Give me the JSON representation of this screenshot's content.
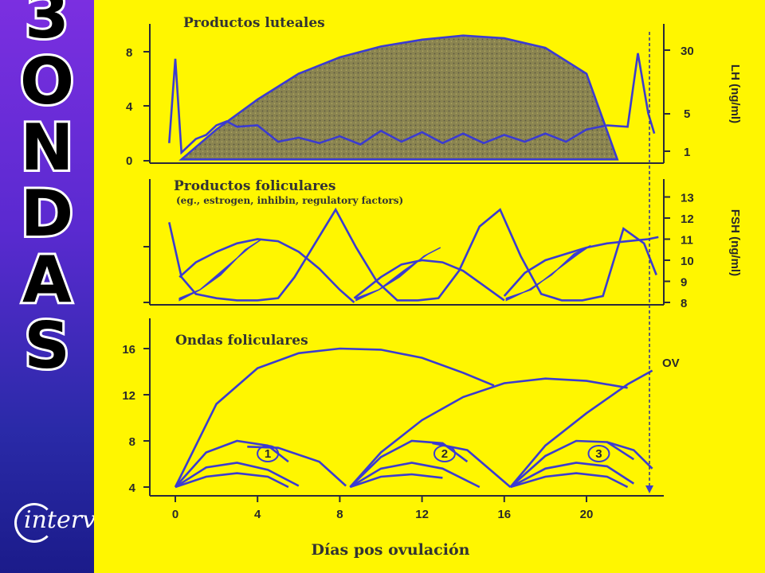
{
  "sidebar": {
    "title_letters": [
      "3",
      "O",
      "N",
      "D",
      "A",
      "S"
    ],
    "logo_text": "interve"
  },
  "colors": {
    "panel": "#fff600",
    "curve": "#3b3bd0",
    "luteal_fill": "#8a8450",
    "sidebar_top": "#7b2fe0",
    "sidebar_bottom": "#1b1b8a"
  },
  "chart_data": [
    {
      "type": "line",
      "title": "Productos luteales",
      "y_left_ticks": [
        "0",
        "4",
        "8"
      ],
      "y_right_label": "LH (ng/ml)",
      "y_right_ticks": [
        "1",
        "5",
        "30"
      ],
      "luteal_area": {
        "x": [
          0.3,
          2,
          4,
          6,
          8,
          10,
          12,
          14,
          16,
          18,
          20,
          21.5
        ],
        "y": [
          0.1,
          2.3,
          4.5,
          6.4,
          7.6,
          8.4,
          8.9,
          9.2,
          9.0,
          8.3,
          6.4,
          0.1
        ]
      },
      "series": [
        {
          "x": [
            -0.3,
            0,
            0.3,
            1,
            1.5,
            2,
            2.5,
            3,
            4,
            5,
            6,
            7,
            8,
            9,
            10,
            11,
            12,
            13,
            14,
            15,
            16,
            17,
            18,
            19,
            20,
            21,
            22,
            22.5,
            23,
            23.3
          ],
          "y": [
            1.3,
            7.5,
            0.6,
            1.6,
            1.9,
            2.6,
            2.9,
            2.5,
            2.6,
            1.4,
            1.7,
            1.3,
            1.8,
            1.2,
            2.2,
            1.4,
            2.1,
            1.3,
            2.0,
            1.3,
            1.9,
            1.4,
            2.0,
            1.4,
            2.3,
            2.6,
            2.5,
            7.9,
            3.5,
            2.0
          ]
        }
      ]
    },
    {
      "type": "line",
      "title": "Productos foliculares",
      "subtitle": "(eg., estrogen, inhibin, regulatory factors)",
      "y_right_label": "FSH (ng/ml)",
      "y_right_ticks": [
        "8",
        "9",
        "10",
        "11",
        "12",
        "13"
      ],
      "series": [
        {
          "x": [
            -0.3,
            0.3,
            1,
            2,
            3,
            4,
            5,
            5.8,
            6.8,
            7.8,
            8.8,
            9.8,
            10.8,
            11.8,
            12.8,
            13.8,
            14.8,
            15.8,
            16.8,
            17.8,
            18.8,
            19.8,
            20.8,
            21.8,
            22.8,
            23.4
          ],
          "y": [
            11.8,
            9.2,
            8.4,
            8.2,
            8.1,
            8.1,
            8.2,
            9.2,
            10.8,
            12.4,
            10.6,
            9.0,
            8.1,
            8.1,
            8.2,
            9.5,
            11.6,
            12.4,
            10.2,
            8.4,
            8.1,
            8.1,
            8.3,
            11.5,
            10.8,
            9.3
          ]
        },
        {
          "x": [
            0.2,
            1,
            2,
            3,
            4,
            5,
            6,
            7,
            8,
            8.7
          ],
          "y": [
            9.2,
            9.9,
            10.4,
            10.8,
            11.0,
            10.9,
            10.4,
            9.6,
            8.6,
            8.0
          ]
        },
        {
          "x": [
            8.7,
            10,
            11,
            12,
            13,
            14,
            15,
            16
          ],
          "y": [
            8.2,
            9.2,
            9.8,
            10.0,
            9.9,
            9.5,
            8.8,
            8.1
          ]
        },
        {
          "x": [
            16,
            17,
            18,
            19,
            20,
            21,
            22,
            23,
            23.5
          ],
          "y": [
            8.3,
            9.4,
            10.0,
            10.3,
            10.6,
            10.8,
            10.9,
            11.0,
            11.1
          ]
        }
      ],
      "follicle_marks": [
        {
          "x": [
            0.2,
            1.2,
            2.4,
            3.6,
            4.2,
            3.4,
            2.2,
            1.2,
            0.2
          ],
          "y": [
            8.2,
            8.6,
            9.6,
            10.6,
            11.0,
            10.5,
            9.3,
            8.6,
            8.1
          ]
        },
        {
          "x": [
            8.8,
            9.9,
            11.1,
            12.3,
            12.9,
            12.1,
            10.9,
            9.9,
            8.8
          ],
          "y": [
            8.2,
            8.6,
            9.5,
            10.3,
            10.6,
            10.2,
            9.2,
            8.6,
            8.1
          ]
        },
        {
          "x": [
            16.1,
            17.3,
            18.5,
            19.6,
            20.2,
            19.4,
            18.3,
            17.2,
            16.1
          ],
          "y": [
            8.2,
            8.6,
            9.5,
            10.3,
            10.7,
            10.3,
            9.3,
            8.6,
            8.1
          ]
        }
      ]
    },
    {
      "type": "line",
      "title": "Ondas foliculares",
      "xlabel": "Días pos ovulación",
      "y_left_ticks": [
        "4",
        "8",
        "12",
        "16"
      ],
      "x_ticks": [
        "0",
        "4",
        "8",
        "12",
        "16",
        "20"
      ],
      "annotation": "OV",
      "wave_labels": [
        "1",
        "2",
        "3"
      ],
      "series": [
        {
          "x": [
            0,
            2,
            4,
            6,
            8,
            10,
            12,
            14,
            15.5
          ],
          "y": [
            4,
            11.2,
            14.3,
            15.6,
            16.0,
            15.9,
            15.2,
            13.9,
            12.8
          ]
        },
        {
          "x": [
            0,
            1.5,
            3,
            4.5,
            5.5
          ],
          "y": [
            4,
            7.0,
            8.0,
            7.6,
            6.2
          ]
        },
        {
          "x": [
            0,
            1.5,
            3,
            4.5,
            6
          ],
          "y": [
            4,
            5.7,
            6.1,
            5.5,
            4.1
          ]
        },
        {
          "x": [
            0,
            1.5,
            3,
            4.5,
            5.5
          ],
          "y": [
            4,
            4.9,
            5.2,
            4.9,
            4.0
          ]
        },
        {
          "x": [
            3.5,
            5,
            7,
            8.3
          ],
          "y": [
            7.5,
            7.4,
            6.2,
            4.1
          ]
        },
        {
          "x": [
            8.5,
            10,
            12,
            14,
            16,
            18,
            20,
            22
          ],
          "y": [
            4,
            7.0,
            9.8,
            11.8,
            13.0,
            13.4,
            13.2,
            12.6
          ]
        },
        {
          "x": [
            8.5,
            10,
            11.5,
            13,
            14.2
          ],
          "y": [
            4,
            6.6,
            8.0,
            7.8,
            6.2
          ]
        },
        {
          "x": [
            8.5,
            10,
            11.5,
            13,
            14.8
          ],
          "y": [
            4,
            5.6,
            6.1,
            5.6,
            4.0
          ]
        },
        {
          "x": [
            8.5,
            10,
            11.5,
            13
          ],
          "y": [
            4,
            4.9,
            5.1,
            4.8
          ]
        },
        {
          "x": [
            12.5,
            14.2,
            16.3
          ],
          "y": [
            7.8,
            7.2,
            4.0
          ]
        },
        {
          "x": [
            16.3,
            18,
            20,
            22,
            23.2
          ],
          "y": [
            4,
            7.6,
            10.4,
            12.9,
            14.1
          ]
        },
        {
          "x": [
            16.3,
            18,
            19.5,
            21,
            22.3
          ],
          "y": [
            4,
            6.7,
            8.0,
            7.9,
            6.4
          ]
        },
        {
          "x": [
            16.3,
            18,
            19.5,
            21,
            22.3
          ],
          "y": [
            4,
            5.6,
            6.1,
            5.8,
            4.3
          ]
        },
        {
          "x": [
            16.3,
            18,
            19.5,
            21,
            22
          ],
          "y": [
            4,
            4.9,
            5.2,
            4.9,
            4.0
          ]
        },
        {
          "x": [
            21,
            22.3,
            23.2
          ],
          "y": [
            7.9,
            7.2,
            5.6
          ]
        }
      ]
    }
  ]
}
